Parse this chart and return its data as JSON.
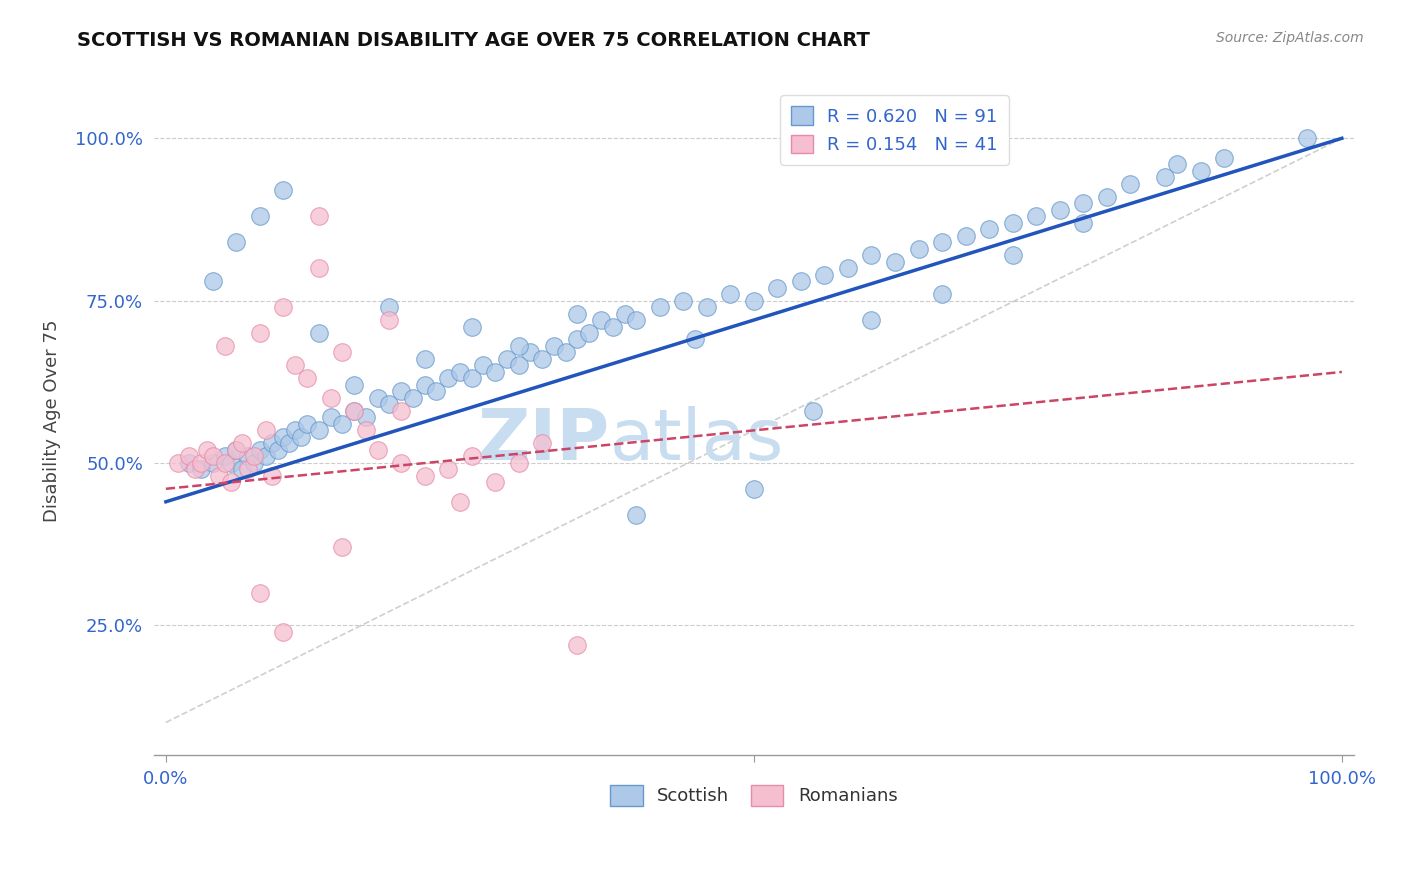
{
  "title": "SCOTTISH VS ROMANIAN DISABILITY AGE OVER 75 CORRELATION CHART",
  "source_text": "Source: ZipAtlas.com",
  "ylabel": "Disability Age Over 75",
  "background_color": "#ffffff",
  "scottish_color": "#adc8e8",
  "scottish_edge_color": "#6699cc",
  "romanian_color": "#f5bfd0",
  "romanian_edge_color": "#e88aaa",
  "scottish_R": 0.62,
  "scottish_N": 91,
  "romanian_R": 0.154,
  "romanian_N": 41,
  "legend_R_color": "#3366cc",
  "legend_label_scottish": "Scottish",
  "legend_label_romanians": "Romanians",
  "trend_scottish_color": "#2255bb",
  "trend_romanian_color": "#cc4466",
  "trend_ref_color": "#bbbbbb",
  "watermark_zip_color": "#c8ddf0",
  "watermark_atlas_color": "#c8ddf0",
  "scottish_x": [
    0.02,
    0.03,
    0.04,
    0.05,
    0.055,
    0.06,
    0.065,
    0.07,
    0.075,
    0.08,
    0.085,
    0.09,
    0.095,
    0.1,
    0.105,
    0.11,
    0.115,
    0.12,
    0.13,
    0.14,
    0.15,
    0.16,
    0.17,
    0.18,
    0.19,
    0.2,
    0.21,
    0.22,
    0.23,
    0.24,
    0.25,
    0.26,
    0.27,
    0.28,
    0.29,
    0.3,
    0.31,
    0.32,
    0.33,
    0.34,
    0.35,
    0.36,
    0.37,
    0.38,
    0.39,
    0.4,
    0.42,
    0.44,
    0.46,
    0.48,
    0.5,
    0.52,
    0.54,
    0.56,
    0.58,
    0.6,
    0.62,
    0.64,
    0.66,
    0.68,
    0.7,
    0.72,
    0.74,
    0.76,
    0.78,
    0.8,
    0.82,
    0.85,
    0.88,
    0.9,
    0.04,
    0.06,
    0.08,
    0.1,
    0.13,
    0.16,
    0.19,
    0.22,
    0.26,
    0.3,
    0.35,
    0.4,
    0.45,
    0.5,
    0.55,
    0.6,
    0.66,
    0.72,
    0.78,
    0.86,
    0.97
  ],
  "scottish_y": [
    0.5,
    0.49,
    0.5,
    0.51,
    0.5,
    0.52,
    0.49,
    0.51,
    0.5,
    0.52,
    0.51,
    0.53,
    0.52,
    0.54,
    0.53,
    0.55,
    0.54,
    0.56,
    0.55,
    0.57,
    0.56,
    0.58,
    0.57,
    0.6,
    0.59,
    0.61,
    0.6,
    0.62,
    0.61,
    0.63,
    0.64,
    0.63,
    0.65,
    0.64,
    0.66,
    0.65,
    0.67,
    0.66,
    0.68,
    0.67,
    0.69,
    0.7,
    0.72,
    0.71,
    0.73,
    0.72,
    0.74,
    0.75,
    0.74,
    0.76,
    0.75,
    0.77,
    0.78,
    0.79,
    0.8,
    0.82,
    0.81,
    0.83,
    0.84,
    0.85,
    0.86,
    0.87,
    0.88,
    0.89,
    0.9,
    0.91,
    0.93,
    0.94,
    0.95,
    0.97,
    0.78,
    0.84,
    0.88,
    0.92,
    0.7,
    0.62,
    0.74,
    0.66,
    0.71,
    0.68,
    0.73,
    0.42,
    0.69,
    0.46,
    0.58,
    0.72,
    0.76,
    0.82,
    0.87,
    0.96,
    1.0
  ],
  "romanian_x": [
    0.01,
    0.02,
    0.025,
    0.03,
    0.035,
    0.04,
    0.045,
    0.05,
    0.055,
    0.06,
    0.065,
    0.07,
    0.075,
    0.08,
    0.085,
    0.09,
    0.1,
    0.11,
    0.12,
    0.13,
    0.14,
    0.15,
    0.16,
    0.17,
    0.18,
    0.19,
    0.2,
    0.22,
    0.24,
    0.26,
    0.28,
    0.3,
    0.32,
    0.13,
    0.08,
    0.1,
    0.15,
    0.05,
    0.2,
    0.25,
    0.35
  ],
  "romanian_y": [
    0.5,
    0.51,
    0.49,
    0.5,
    0.52,
    0.51,
    0.48,
    0.5,
    0.47,
    0.52,
    0.53,
    0.49,
    0.51,
    0.7,
    0.55,
    0.48,
    0.74,
    0.65,
    0.63,
    0.8,
    0.6,
    0.67,
    0.58,
    0.55,
    0.52,
    0.72,
    0.5,
    0.48,
    0.49,
    0.51,
    0.47,
    0.5,
    0.53,
    0.88,
    0.3,
    0.24,
    0.37,
    0.68,
    0.58,
    0.44,
    0.22
  ],
  "xlim": [
    -0.01,
    1.01
  ],
  "ylim": [
    0.05,
    1.08
  ],
  "xticks": [
    0.0,
    0.5,
    1.0
  ],
  "yticks": [
    0.25,
    0.5,
    0.75,
    1.0
  ],
  "xtick_labels": [
    "0.0%",
    "",
    "100.0%"
  ],
  "ytick_labels": [
    "25.0%",
    "50.0%",
    "75.0%",
    "100.0%"
  ],
  "scottish_trend_x": [
    0.0,
    1.0
  ],
  "scottish_trend_y": [
    0.44,
    1.0
  ],
  "romanian_trend_x": [
    0.0,
    1.0
  ],
  "romanian_trend_y": [
    0.46,
    0.64
  ],
  "ref_line_x": [
    0.0,
    1.0
  ],
  "ref_line_y": [
    0.1,
    1.0
  ]
}
